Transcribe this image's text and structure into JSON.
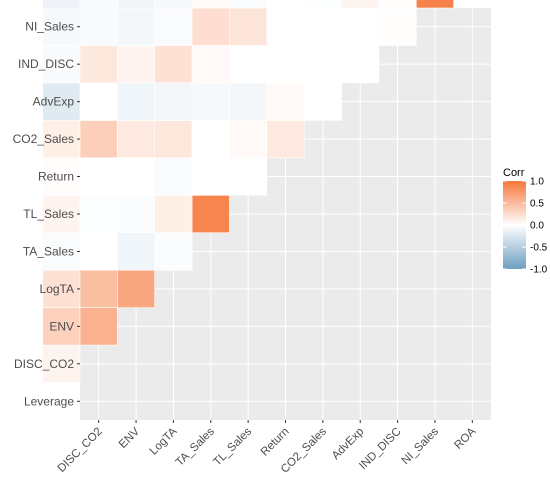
{
  "chart_data": {
    "type": "heatmap",
    "variables": [
      "Leverage",
      "DISC_CO2",
      "ENV",
      "LogTA",
      "TA_Sales",
      "TL_Sales",
      "Return",
      "CO2_Sales",
      "AdvExp",
      "IND_DISC",
      "NI_Sales",
      "ROA"
    ],
    "x_labels": [
      "DISC_CO2",
      "ENV",
      "LogTA",
      "TA_Sales",
      "TL_Sales",
      "Return",
      "CO2_Sales",
      "AdvExp",
      "IND_DISC",
      "NI_Sales",
      "ROA"
    ],
    "y_labels": [
      "NI_Sales",
      "IND_DISC",
      "AdvExp",
      "CO2_Sales",
      "Return",
      "TL_Sales",
      "TA_Sales",
      "LogTA",
      "ENV",
      "DISC_CO2",
      "Leverage"
    ],
    "lower_triangle": [
      [
        0.08
      ],
      [
        0.33,
        0.57
      ],
      [
        0.22,
        0.48,
        0.65
      ],
      [
        -0.04,
        0.0,
        -0.1,
        -0.03
      ],
      [
        0.08,
        -0.02,
        -0.03,
        0.12,
        0.9
      ],
      [
        0.02,
        0.0,
        0.0,
        -0.04,
        0.0,
        0.0
      ],
      [
        0.12,
        0.35,
        0.16,
        0.18,
        0.0,
        0.04,
        0.16
      ],
      [
        -0.22,
        0.0,
        -0.1,
        -0.08,
        -0.06,
        -0.08,
        0.04,
        0.0
      ],
      [
        -0.05,
        0.17,
        0.07,
        0.22,
        0.04,
        0.0,
        0.0,
        0.0,
        0.0
      ],
      [
        -0.06,
        -0.05,
        -0.08,
        -0.04,
        0.24,
        0.2,
        0.0,
        0.0,
        0.0,
        0.01
      ],
      [
        -0.12,
        -0.05,
        -0.1,
        -0.06,
        0.04,
        -0.03,
        0.0,
        -0.02,
        0.08,
        0.02,
        0.92
      ]
    ],
    "legend": {
      "title": "Corr",
      "ticks": [
        "1.0",
        "0.5",
        "0.0",
        "-0.5",
        "-1.0"
      ],
      "tick_values": [
        1.0,
        0.5,
        0.0,
        -0.5,
        -1.0
      ]
    },
    "scale_colors": {
      "low": "#6d9ec1",
      "mid": "#ffffff",
      "high": "#f5773b"
    },
    "panel_background": "#ebebeb",
    "cell_border": "#ffffff",
    "legend_placement": "right"
  }
}
